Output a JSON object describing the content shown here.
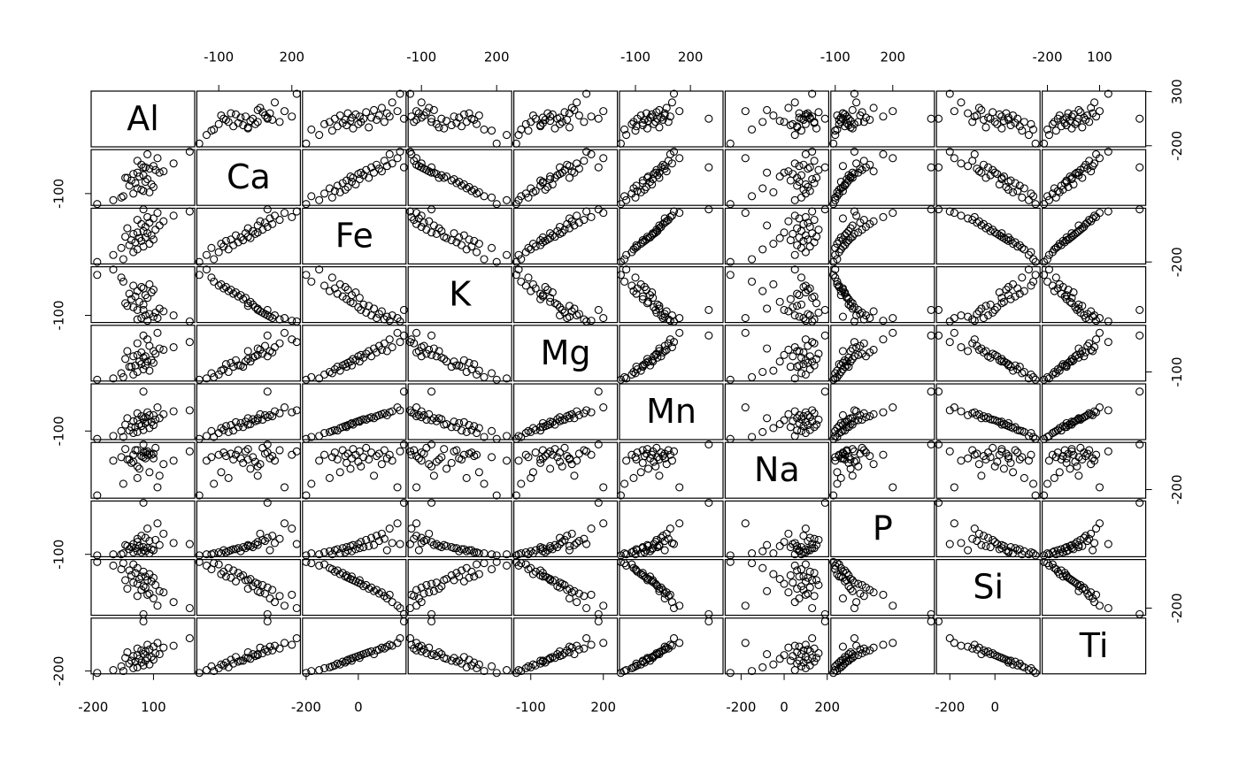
{
  "chart_data": {
    "type": "scatter-matrix",
    "variables": [
      {
        "name": "Al",
        "lim": [
          -210,
          305
        ],
        "xticks": [
          -200,
          100
        ],
        "yticks": [
          -200,
          300
        ],
        "values": [
          -180,
          -50,
          -100,
          0,
          20,
          -60,
          50,
          -20,
          80,
          10,
          40,
          -10,
          100,
          30,
          60,
          -40,
          90,
          0,
          70,
          20,
          50,
          110,
          -30,
          60,
          130,
          40,
          80,
          150,
          20,
          100,
          70,
          200,
          120,
          280,
          50
        ]
      },
      {
        "name": "Ca",
        "lim": [
          -190,
          235
        ],
        "xticks": [
          -100,
          200
        ],
        "yticks": [
          -100
        ],
        "values": [
          -180,
          -120,
          -150,
          -100,
          -60,
          -130,
          -80,
          -40,
          -90,
          -20,
          -70,
          0,
          -50,
          30,
          -10,
          20,
          -30,
          50,
          10,
          60,
          40,
          80,
          20,
          100,
          60,
          120,
          90,
          70,
          150,
          110,
          200,
          130,
          170,
          220,
          100
        ]
      },
      {
        "name": "Fe",
        "lim": [
          -214,
          183
        ],
        "xticks": [
          -200,
          0
        ],
        "yticks": [
          -200
        ],
        "values": [
          -200,
          -180,
          -150,
          -130,
          -110,
          -100,
          -90,
          -80,
          -70,
          -60,
          -50,
          -45,
          -40,
          -30,
          -25,
          -20,
          -10,
          0,
          5,
          10,
          20,
          30,
          40,
          50,
          60,
          70,
          80,
          90,
          100,
          110,
          120,
          130,
          150,
          160,
          175
        ]
      },
      {
        "name": "K",
        "lim": [
          -153,
          260
        ],
        "xticks": [
          -100,
          200
        ],
        "yticks": [
          -100
        ],
        "values": [
          200,
          150,
          240,
          120,
          80,
          180,
          100,
          60,
          130,
          40,
          110,
          20,
          90,
          0,
          50,
          -10,
          70,
          -40,
          30,
          -60,
          -20,
          -80,
          -30,
          -100,
          -50,
          -120,
          -90,
          -70,
          -130,
          -110,
          -140,
          -100,
          -120,
          -145,
          -60
        ]
      },
      {
        "name": "Mg",
        "lim": [
          -170,
          258
        ],
        "xticks": [
          -100,
          200
        ],
        "yticks": [
          -100
        ],
        "values": [
          -160,
          -140,
          -150,
          -120,
          -100,
          -110,
          -80,
          -60,
          -90,
          -50,
          -40,
          -60,
          -30,
          -20,
          -50,
          0,
          -10,
          20,
          -20,
          30,
          10,
          40,
          60,
          20,
          80,
          50,
          100,
          70,
          120,
          60,
          150,
          90,
          200,
          130,
          180
        ]
      },
      {
        "name": "Mn",
        "lim": [
          -187,
          378
        ],
        "xticks": [
          -100,
          200
        ],
        "yticks": [
          -100
        ],
        "values": [
          -180,
          -160,
          -150,
          -120,
          -110,
          -100,
          -90,
          -95,
          -70,
          -60,
          -50,
          -60,
          -40,
          -30,
          -20,
          -35,
          -10,
          0,
          -5,
          10,
          20,
          15,
          30,
          40,
          30,
          50,
          60,
          70,
          80,
          60,
          90,
          100,
          140,
          110,
          300
        ]
      },
      {
        "name": "Na",
        "lim": [
          -274,
          207
        ],
        "xticks": [
          -200,
          0,
          200
        ],
        "yticks": [
          -200
        ],
        "values": [
          -250,
          -150,
          50,
          100,
          -100,
          80,
          120,
          60,
          -50,
          140,
          90,
          30,
          110,
          -20,
          70,
          150,
          100,
          40,
          130,
          0,
          80,
          160,
          60,
          120,
          -80,
          90,
          110,
          20,
          140,
          70,
          100,
          50,
          -180,
          130,
          190
        ]
      },
      {
        "name": "P",
        "lim": [
          -123,
          417
        ],
        "xticks": [
          -100,
          200
        ],
        "yticks": [
          -100
        ],
        "values": [
          -110,
          -90,
          -100,
          -80,
          -70,
          -100,
          -60,
          -50,
          -90,
          -40,
          -80,
          -30,
          -60,
          -20,
          -70,
          -10,
          -50,
          0,
          -40,
          20,
          -30,
          40,
          -20,
          60,
          -10,
          80,
          30,
          100,
          50,
          -60,
          150,
          10,
          200,
          0,
          400
        ]
      },
      {
        "name": "Si",
        "lim": [
          -259,
          200
        ],
        "xticks": [
          -200,
          0
        ],
        "yticks": [
          -200
        ],
        "values": [
          180,
          170,
          150,
          160,
          130,
          120,
          100,
          110,
          80,
          90,
          60,
          70,
          50,
          40,
          60,
          30,
          20,
          10,
          30,
          0,
          -20,
          -10,
          -40,
          -30,
          -60,
          -50,
          -80,
          -70,
          -100,
          -120,
          -90,
          -150,
          -180,
          -200,
          -250
        ]
      },
      {
        "name": "Ti",
        "lim": [
          -230,
          365
        ],
        "xticks": [
          -200,
          100
        ],
        "yticks": [
          -200
        ],
        "values": [
          -220,
          -200,
          -190,
          -170,
          -160,
          -150,
          -140,
          -120,
          -130,
          -100,
          -110,
          -90,
          -80,
          -70,
          -90,
          -60,
          -50,
          -40,
          -60,
          -30,
          -20,
          -10,
          0,
          10,
          -20,
          20,
          30,
          50,
          40,
          60,
          80,
          70,
          100,
          150,
          330
        ]
      }
    ]
  }
}
